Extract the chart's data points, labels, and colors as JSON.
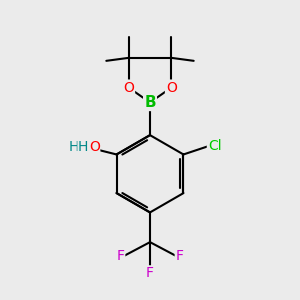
{
  "bg_color": "#ebebeb",
  "bond_color": "#000000",
  "bond_width": 1.5,
  "atom_colors": {
    "O": "#ff0000",
    "B": "#00bb00",
    "Cl": "#00cc00",
    "F": "#cc00cc",
    "H": "#008888",
    "C": "#000000"
  },
  "font_size": 9
}
